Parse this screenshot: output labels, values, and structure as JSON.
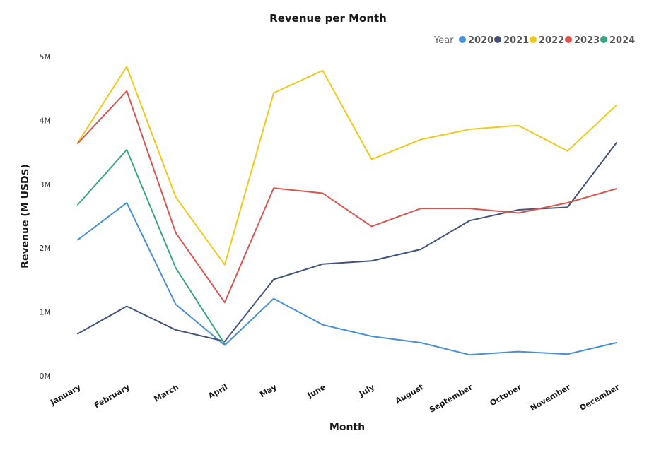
{
  "chart_data": {
    "type": "line",
    "title": "Revenue per Month",
    "xlabel": "Month",
    "ylabel": "Revenue (M USD$)",
    "legend_title": "Year",
    "legend_position": "top-right",
    "grid": false,
    "ylim": [
      0,
      5000000
    ],
    "yticks": [
      "0M",
      "1M",
      "2M",
      "3M",
      "4M",
      "5M"
    ],
    "categories": [
      "January",
      "February",
      "March",
      "April",
      "May",
      "June",
      "July",
      "August",
      "September",
      "October",
      "November",
      "December"
    ],
    "series": [
      {
        "name": "2020",
        "color": "#4a8fd8",
        "values": [
          2130000,
          2710000,
          1120000,
          480000,
          1210000,
          800000,
          620000,
          520000,
          330000,
          380000,
          340000,
          520000
        ]
      },
      {
        "name": "2021",
        "color": "#45527a",
        "values": [
          660000,
          1090000,
          720000,
          540000,
          1510000,
          1750000,
          1800000,
          1980000,
          2430000,
          2600000,
          2640000,
          3650000
        ]
      },
      {
        "name": "2022",
        "color": "#efc91c",
        "values": [
          3650000,
          4840000,
          2800000,
          1740000,
          4430000,
          4780000,
          3390000,
          3700000,
          3860000,
          3920000,
          3520000,
          4240000
        ]
      },
      {
        "name": "2023",
        "color": "#d95650",
        "values": [
          3640000,
          4460000,
          2240000,
          1150000,
          2940000,
          2860000,
          2340000,
          2620000,
          2620000,
          2550000,
          2710000,
          2930000
        ]
      },
      {
        "name": "2024",
        "color": "#38a77e",
        "values": [
          2680000,
          3540000,
          1690000,
          500000,
          null,
          null,
          null,
          null,
          null,
          null,
          null,
          null
        ]
      }
    ]
  }
}
